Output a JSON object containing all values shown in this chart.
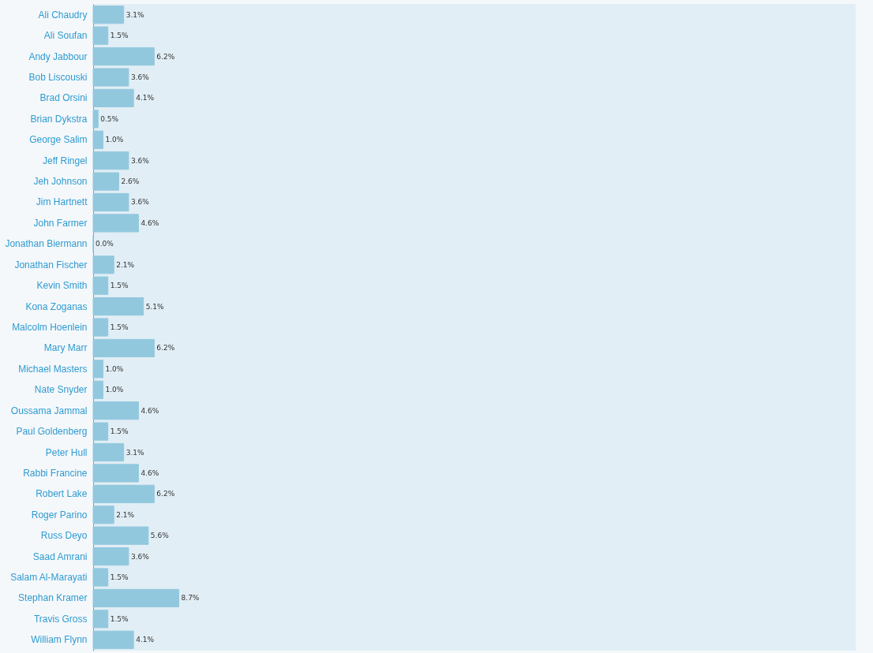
{
  "chart_data": {
    "type": "bar",
    "orientation": "horizontal",
    "categories": [
      "Ali Chaudry",
      "Ali Soufan",
      "Andy Jabbour",
      "Bob Liscouski",
      "Brad Orsini",
      "Brian Dykstra",
      "George Salim",
      "Jeff Ringel",
      "Jeh Johnson",
      "Jim Hartnett",
      "John Farmer",
      "Jonathan Biermann",
      "Jonathan Fischer",
      "Kevin Smith",
      "Kona Zoganas",
      "Malcolm Hoenlein",
      "Mary Marr",
      "Michael Masters",
      "Nate Snyder",
      "Oussama Jammal",
      "Paul Goldenberg",
      "Peter Hull",
      "Rabbi Francine",
      "Robert Lake",
      "Roger Parino",
      "Russ Deyo",
      "Saad Amrani",
      "Salam Al-Marayati",
      "Stephan Kramer",
      "Travis Gross",
      "William Flynn"
    ],
    "values": [
      3.1,
      1.5,
      6.2,
      3.6,
      4.1,
      0.5,
      1.0,
      3.6,
      2.6,
      3.6,
      4.6,
      0.0,
      2.1,
      1.5,
      5.1,
      1.5,
      6.2,
      1.0,
      1.0,
      4.6,
      1.5,
      3.1,
      4.6,
      6.2,
      2.1,
      5.6,
      3.6,
      1.5,
      8.7,
      1.5,
      4.1
    ],
    "value_labels": [
      "3.1%",
      "1.5%",
      "6.2%",
      "3.6%",
      "4.1%",
      "0.5%",
      "1.0%",
      "3.6%",
      "2.6%",
      "3.6%",
      "4.6%",
      "0.0%",
      "2.1%",
      "1.5%",
      "5.1%",
      "1.5%",
      "6.2%",
      "1.0%",
      "1.0%",
      "4.6%",
      "1.5%",
      "3.1%",
      "4.6%",
      "6.2%",
      "2.1%",
      "5.6%",
      "3.6%",
      "1.5%",
      "8.7%",
      "1.5%",
      "4.1%"
    ],
    "color": "#92c8de"
  }
}
